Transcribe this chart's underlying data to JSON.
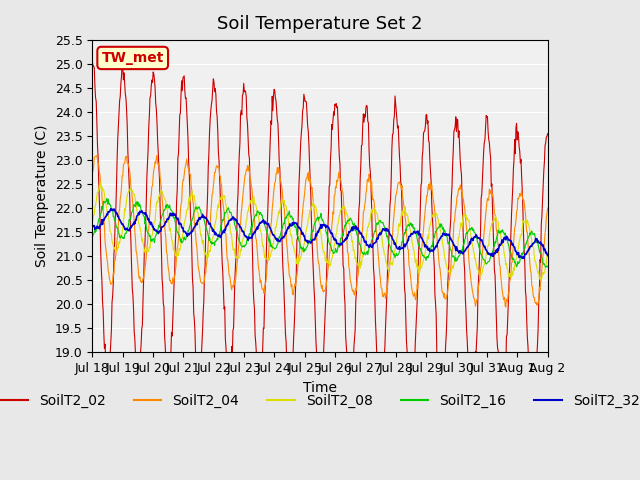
{
  "title": "Soil Temperature Set 2",
  "xlabel": "Time",
  "ylabel": "Soil Temperature (C)",
  "ylim": [
    19.0,
    25.5
  ],
  "yticks": [
    19.0,
    19.5,
    20.0,
    20.5,
    21.0,
    21.5,
    22.0,
    22.5,
    23.0,
    23.5,
    24.0,
    24.5,
    25.0,
    25.5
  ],
  "xtick_labels": [
    "Jul 18",
    "Jul 19",
    "Jul 20",
    "Jul 21",
    "Jul 22",
    "Jul 23",
    "Jul 24",
    "Jul 25",
    "Jul 26",
    "Jul 27",
    "Jul 28",
    "Jul 29",
    "Jul 30",
    "Jul 31",
    "Aug 1",
    "Aug 2"
  ],
  "series_colors": {
    "SoilT2_02": "#cc0000",
    "SoilT2_04": "#ff8800",
    "SoilT2_08": "#dddd00",
    "SoilT2_16": "#00cc00",
    "SoilT2_32": "#0000cc"
  },
  "annotation_text": "TW_met",
  "annotation_color": "#cc0000",
  "annotation_bg": "#ffffcc",
  "background_color": "#e8e8e8",
  "plot_bg_color": "#f0f0f0",
  "n_days": 15,
  "points_per_day": 48,
  "title_fontsize": 13,
  "axis_label_fontsize": 10,
  "tick_fontsize": 9,
  "legend_fontsize": 10
}
